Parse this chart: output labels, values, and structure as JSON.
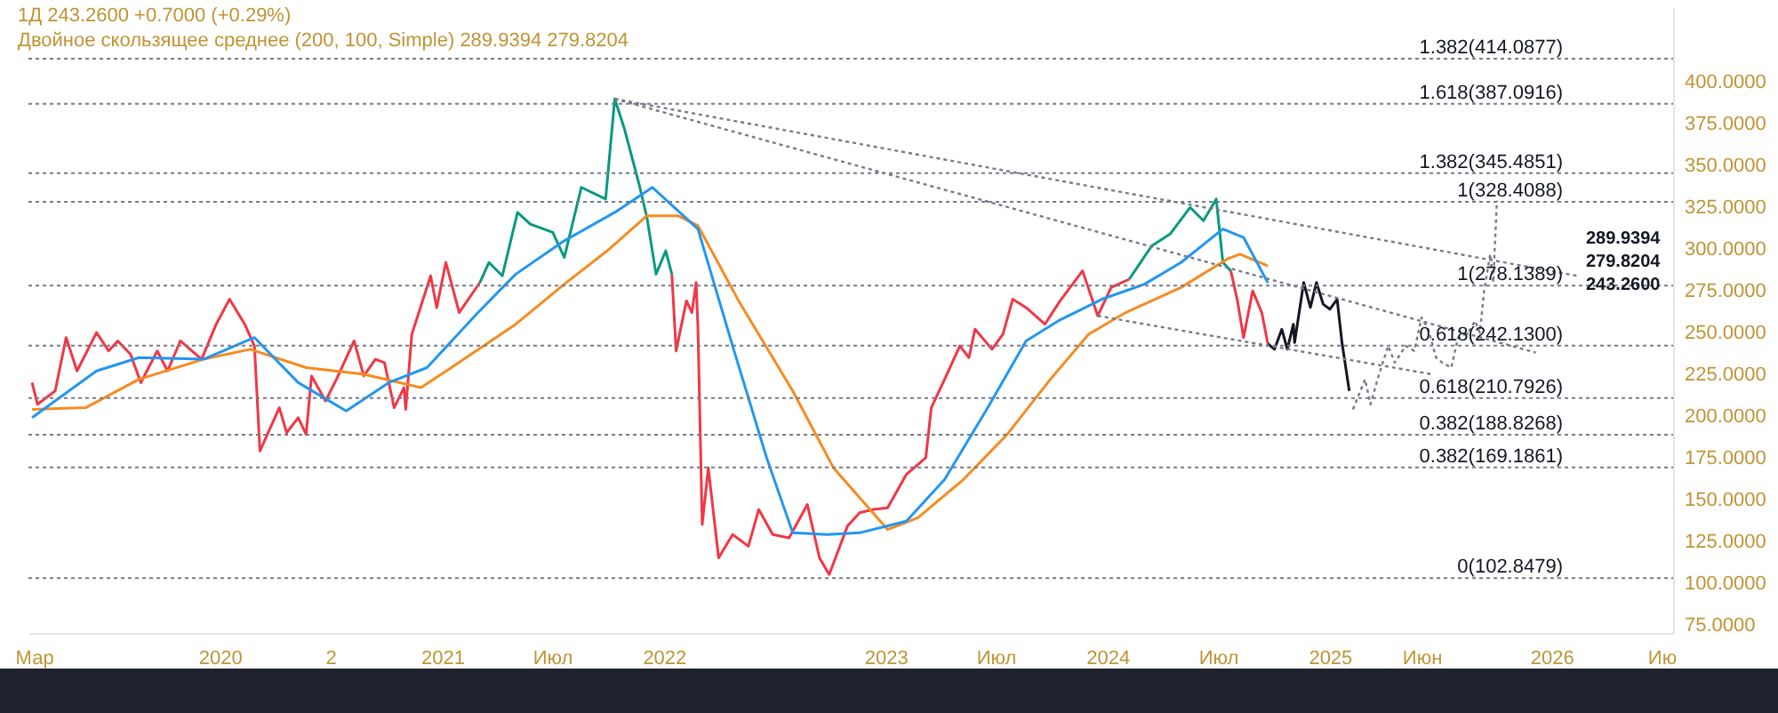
{
  "chart_data": {
    "type": "line",
    "title": "1Д 243.2600 +0.7000 (+0.29%)",
    "subtitle": "Двойное скользящее среднее (200, 100, Simple) 289.9394 279.8204",
    "x": [
      "2019-02-26",
      "2019-03-07",
      "2019-04-05",
      "2019-04-23",
      "2019-05-11",
      "2019-06-12",
      "2019-07-02",
      "2019-07-17",
      "2019-08-07",
      "2019-08-24",
      "2019-09-20",
      "2019-10-07",
      "2019-10-28",
      "2019-12-02",
      "2019-12-26",
      "2020-01-17",
      "2020-02-11",
      "2020-02-27",
      "2020-03-07",
      "2020-03-23",
      "2020-04-08",
      "2020-04-20",
      "2020-05-09",
      "2020-05-22",
      "2020-05-31",
      "2020-06-23",
      "2020-07-11",
      "2020-08-09",
      "2020-08-25",
      "2020-09-13",
      "2020-09-28",
      "2020-10-14",
      "2020-10-30",
      "2020-11-02",
      "2020-11-12",
      "2020-12-13",
      "2020-12-23",
      "2021-01-07",
      "2021-01-29",
      "2021-03-04",
      "2021-03-19",
      "2021-04-10",
      "2021-05-05",
      "2021-05-26",
      "2021-07-02",
      "2021-07-21",
      "2021-08-18",
      "2021-09-27",
      "2021-10-12",
      "2021-10-28",
      "2021-11-21",
      "2021-12-04",
      "2021-12-19",
      "2022-01-04",
      "2022-01-14",
      "2022-01-21",
      "2022-02-07",
      "2022-02-16",
      "2022-02-23",
      "2022-02-26",
      "2022-03-05",
      "2022-03-15",
      "2022-04-01",
      "2022-04-24",
      "2022-05-20",
      "2022-06-06",
      "2022-06-29",
      "2022-07-26",
      "2022-08-25",
      "2022-09-14",
      "2022-09-30",
      "2022-10-30",
      "2022-11-19",
      "2022-12-12",
      "2023-01-04",
      "2023-02-04",
      "2023-03-08",
      "2023-03-17",
      "2023-04-08",
      "2023-05-03",
      "2023-05-18",
      "2023-05-28",
      "2023-06-25",
      "2023-07-13",
      "2023-07-29",
      "2023-08-20",
      "2023-09-20",
      "2023-10-15",
      "2023-11-21",
      "2023-12-16",
      "2024-01-07",
      "2024-02-06",
      "2024-03-14",
      "2024-04-13",
      "2024-05-16",
      "2024-06-07",
      "2024-06-28",
      "2024-07-09",
      "2024-07-22",
      "2024-08-02",
      "2024-08-12",
      "2024-08-27",
      "2024-09-11",
      "2024-09-21"
    ],
    "series": [
      {
        "color": "#f23645",
        "line_style": "solid",
        "values": [
          220,
          207,
          215,
          247,
          227,
          250,
          239,
          245,
          237,
          220,
          239,
          227,
          245,
          234,
          255,
          270,
          255,
          242,
          179,
          192,
          205,
          190,
          199,
          189,
          224,
          209,
          222,
          245,
          224,
          234,
          232,
          205,
          217,
          204,
          249,
          284,
          265,
          292,
          262,
          280,
          null,
          null,
          null,
          null,
          null,
          null,
          null,
          null,
          null,
          null,
          null,
          null,
          null,
          null,
          285,
          239,
          269,
          262,
          280,
          252,
          135,
          169,
          115,
          129,
          122,
          144,
          129,
          127,
          147,
          115,
          105,
          134,
          142,
          144,
          145,
          165,
          175,
          205,
          222,
          242,
          235,
          252,
          240,
          249,
          270,
          265,
          255,
          269,
          287,
          260,
          277,
          282,
          null,
          null,
          null,
          null,
          null,
          null,
          287,
          269,
          247,
          275,
          262,
          243.26
        ]
      },
      {
        "color": "#089981",
        "line_style": "solid",
        "values": [
          null,
          null,
          null,
          null,
          null,
          null,
          null,
          null,
          null,
          null,
          null,
          null,
          null,
          null,
          null,
          null,
          null,
          null,
          null,
          null,
          null,
          null,
          null,
          null,
          null,
          null,
          null,
          null,
          null,
          null,
          null,
          null,
          null,
          null,
          null,
          null,
          null,
          null,
          null,
          280,
          292,
          284,
          322,
          315,
          310,
          295,
          337,
          330,
          390,
          372,
          339,
          319,
          285,
          299,
          285,
          null,
          null,
          null,
          null,
          null,
          null,
          null,
          null,
          null,
          null,
          null,
          null,
          null,
          null,
          null,
          null,
          null,
          null,
          null,
          null,
          null,
          null,
          null,
          null,
          null,
          null,
          null,
          null,
          null,
          null,
          null,
          null,
          null,
          null,
          null,
          null,
          282,
          302,
          309,
          325,
          317,
          330,
          292,
          287,
          null,
          null,
          null,
          null,
          null
        ]
      },
      {
        "color": "#f68b1f",
        "line_style": "solid",
        "x": [
          "2019-02-26",
          "2019-05-25",
          "2019-08-21",
          "2019-12-05",
          "2020-02-20",
          "2020-05-22",
          "2020-08-25",
          "2020-11-27",
          "2021-01-16",
          "2021-05-02",
          "2021-07-21",
          "2021-10-03",
          "2021-12-04",
          "2022-01-24",
          "2022-02-26",
          "2022-05-04",
          "2022-08-01",
          "2022-10-07",
          "2023-01-04",
          "2023-02-23",
          "2023-05-09",
          "2023-07-20",
          "2023-09-29",
          "2023-12-01",
          "2024-01-31",
          "2024-05-01",
          "2024-07-16",
          "2024-08-06",
          "2024-09-21"
        ],
        "values": [
          204,
          205,
          222,
          234,
          240,
          229,
          225,
          217,
          229,
          255,
          279,
          300,
          320,
          320,
          314,
          269,
          215,
          169,
          132,
          139,
          162,
          189,
          222,
          249,
          262,
          277,
          294,
          297,
          289.9394
        ]
      },
      {
        "color": "#2196f3",
        "line_style": "solid",
        "x": [
          "2019-02-26",
          "2019-06-12",
          "2019-08-21",
          "2019-12-05",
          "2020-02-27",
          "2020-05-09",
          "2020-07-27",
          "2020-10-05",
          "2020-12-07",
          "2021-03-01",
          "2021-05-02",
          "2021-07-21",
          "2021-10-12",
          "2021-12-13",
          "2022-02-26",
          "2022-04-24",
          "2022-06-19",
          "2022-08-01",
          "2022-09-27",
          "2022-11-19",
          "2023-02-04",
          "2023-04-08",
          "2023-06-18",
          "2023-08-20",
          "2023-10-12",
          "2023-12-23",
          "2024-03-02",
          "2024-05-01",
          "2024-07-09",
          "2024-08-12",
          "2024-09-21"
        ],
        "values": [
          199,
          227,
          235,
          234,
          247,
          220,
          203,
          220,
          229,
          262,
          285,
          305,
          322,
          337,
          312,
          242,
          175,
          130,
          129,
          130,
          137,
          162,
          205,
          245,
          257,
          270,
          279,
          292,
          312,
          307,
          279.8204
        ]
      },
      {
        "color": "#131722",
        "line_style": "solid",
        "x": [
          "2024-09-21",
          "2024-10-02",
          "2024-10-14",
          "2024-10-23",
          "2024-11-02",
          "2024-11-04",
          "2024-11-19",
          "2024-11-30",
          "2024-12-10",
          "2024-12-21",
          "2025-01-01",
          "2025-01-13",
          "2025-01-21",
          "2025-02-02"
        ],
        "values": [
          243.26,
          240,
          252,
          240,
          255,
          244,
          280,
          265,
          280,
          267,
          264,
          270,
          244,
          215
        ]
      },
      {
        "color": "#787b86",
        "line_style": "dotted",
        "x": [
          "2025-02-08",
          "2025-02-28",
          "2025-03-09",
          "2025-03-23",
          "2025-04-07",
          "2025-04-18",
          "2025-05-06",
          "2025-05-20",
          "2025-06-01",
          "2025-06-12",
          "2025-06-25",
          "2025-07-05",
          "2025-07-20",
          "2025-07-31",
          "2025-08-17",
          "2025-08-28",
          "2025-09-05",
          "2025-09-12",
          "2025-09-22",
          "2025-09-27",
          "2025-10-03"
        ],
        "values": [
          204,
          222,
          207,
          225,
          242,
          232,
          242,
          239,
          259,
          252,
          235,
          232,
          229,
          247,
          250,
          257,
          250,
          275,
          297,
          280,
          329
        ]
      },
      {
        "color": "#787b86",
        "line_style": "dotted",
        "x": [
          "2021-10-12",
          "2026-02-12"
        ],
        "values": [
          390,
          284
        ]
      },
      {
        "color": "#787b86",
        "line_style": "dotted",
        "x": [
          "2021-10-12",
          "2025-12-06"
        ],
        "values": [
          390,
          238
        ]
      },
      {
        "color": "#787b86",
        "line_style": "dotted",
        "x": [
          "2023-12-16",
          "2025-06-18"
        ],
        "values": [
          260,
          225
        ]
      }
    ],
    "xlim": [
      "2019-02-20",
      "2026-07-20"
    ],
    "xticks": [
      {
        "value": "2019-03-01",
        "label": "Мар"
      },
      {
        "value": "2020-01-01",
        "label": "2020"
      },
      {
        "value": "2020-07-01",
        "label": "2"
      },
      {
        "value": "2021-01-01",
        "label": "2021"
      },
      {
        "value": "2021-07-01",
        "label": "Июл"
      },
      {
        "value": "2022-01-01",
        "label": "2022"
      },
      {
        "value": "2023-01-01",
        "label": "2023"
      },
      {
        "value": "2023-07-01",
        "label": "Июл"
      },
      {
        "value": "2024-01-01",
        "label": "2024"
      },
      {
        "value": "2024-07-01",
        "label": "Июл"
      },
      {
        "value": "2025-01-01",
        "label": "2025"
      },
      {
        "value": "2025-06-01",
        "label": "Июн"
      },
      {
        "value": "2026-01-01",
        "label": "2026"
      },
      {
        "value": "2026-07-01",
        "label": "Ию"
      }
    ],
    "ylim": [
      70,
      445
    ],
    "yticks": [
      {
        "value": 75,
        "label": "75.0000"
      },
      {
        "value": 100,
        "label": "100.0000"
      },
      {
        "value": 125,
        "label": "125.0000"
      },
      {
        "value": 150,
        "label": "150.0000"
      },
      {
        "value": 175,
        "label": "175.0000"
      },
      {
        "value": 200,
        "label": "200.0000"
      },
      {
        "value": 225,
        "label": "225.0000"
      },
      {
        "value": 250,
        "label": "250.0000"
      },
      {
        "value": 275,
        "label": "275.0000"
      },
      {
        "value": 300,
        "label": "300.0000"
      },
      {
        "value": 325,
        "label": "325.0000"
      },
      {
        "value": 350,
        "label": "350.0000"
      },
      {
        "value": 375,
        "label": "375.0000"
      },
      {
        "value": 400,
        "label": "400.0000"
      }
    ],
    "ref_lines": [
      {
        "axis": "y",
        "value": 414.0877,
        "label": "1.382(414.0877)",
        "color": "#787b86",
        "line_style": "dotted"
      },
      {
        "axis": "y",
        "value": 387.0916,
        "label": "1.618(387.0916)",
        "color": "#787b86",
        "line_style": "dotted"
      },
      {
        "axis": "y",
        "value": 345.4851,
        "label": "1.382(345.4851)",
        "color": "#787b86",
        "line_style": "dotted"
      },
      {
        "axis": "y",
        "value": 328.4088,
        "label": "1(328.4088)",
        "color": "#787b86",
        "line_style": "dotted"
      },
      {
        "axis": "y",
        "value": 278.1389,
        "label": "1(278.1389)",
        "color": "#787b86",
        "line_style": "dotted"
      },
      {
        "axis": "y",
        "value": 242.13,
        "label": "0.618(242.1300)",
        "color": "#787b86",
        "line_style": "dotted"
      },
      {
        "axis": "y",
        "value": 210.7926,
        "label": "0.618(210.7926)",
        "color": "#787b86",
        "line_style": "dotted"
      },
      {
        "axis": "y",
        "value": 188.8268,
        "label": "0.382(188.8268)",
        "color": "#787b86",
        "line_style": "dotted"
      },
      {
        "axis": "y",
        "value": 169.1861,
        "label": "0.382(169.1861)",
        "color": "#787b86",
        "line_style": "dotted"
      },
      {
        "axis": "y",
        "value": 102.8479,
        "label": "0(102.8479)",
        "color": "#787b86",
        "line_style": "dotted"
      }
    ],
    "annotations": [
      "289.9394",
      "279.8204",
      "243.2600"
    ]
  }
}
